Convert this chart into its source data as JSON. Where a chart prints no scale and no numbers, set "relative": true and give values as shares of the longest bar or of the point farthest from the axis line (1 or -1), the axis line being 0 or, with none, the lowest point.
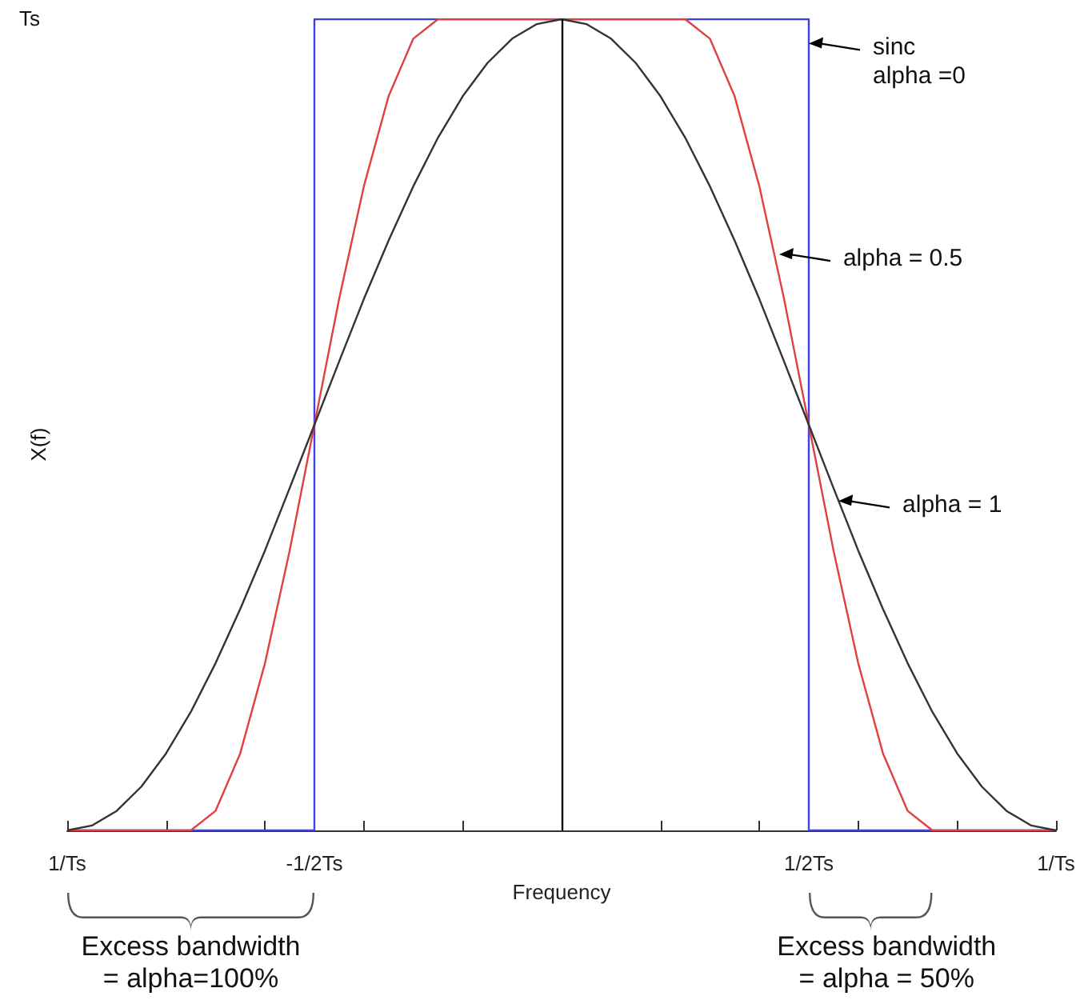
{
  "chart_data": {
    "type": "line",
    "relative": true,
    "xlabel": "Frequency",
    "ylabel": "X(f)",
    "x": [
      -1,
      -0.95,
      -0.9,
      -0.85,
      -0.8,
      -0.75,
      -0.7,
      -0.65,
      -0.6,
      -0.55,
      -0.5,
      -0.45,
      -0.4,
      -0.35,
      -0.3,
      -0.25,
      -0.2,
      -0.15,
      -0.1,
      -0.05,
      0,
      0.05,
      0.1,
      0.15,
      0.2,
      0.25,
      0.3,
      0.35,
      0.4,
      0.45,
      0.5,
      0.55,
      0.6,
      0.65,
      0.7,
      0.75,
      0.8,
      0.85,
      0.9,
      0.95,
      1
    ],
    "xlim": [
      -1,
      1
    ],
    "xticks": [
      {
        "value": -1,
        "label": "1/Ts"
      },
      {
        "value": -0.8,
        "label": null
      },
      {
        "value": -0.6,
        "label": null
      },
      {
        "value": -0.5,
        "label": "-1/2Ts"
      },
      {
        "value": -0.4,
        "label": null
      },
      {
        "value": -0.2,
        "label": null
      },
      {
        "value": 0,
        "label": null
      },
      {
        "value": 0.2,
        "label": null
      },
      {
        "value": 0.4,
        "label": null
      },
      {
        "value": 0.5,
        "label": "1/2Ts"
      },
      {
        "value": 0.6,
        "label": null
      },
      {
        "value": 0.8,
        "label": null
      },
      {
        "value": 1,
        "label": "1/Ts"
      }
    ],
    "series": [
      {
        "color": "#4040e0",
        "x": [
          -1,
          -0.5,
          -0.5,
          0.5,
          0.5,
          1
        ],
        "values": [
          0,
          0,
          1,
          1,
          0,
          0
        ]
      },
      {
        "color": "#e04040",
        "values": [
          0,
          0,
          0,
          0,
          0,
          0,
          0.024,
          0.095,
          0.206,
          0.345,
          0.5,
          0.655,
          0.794,
          0.905,
          0.976,
          1,
          1,
          1,
          1,
          1,
          1,
          1,
          1,
          1,
          1,
          1,
          0.976,
          0.905,
          0.794,
          0.655,
          0.5,
          0.345,
          0.206,
          0.095,
          0.024,
          0,
          0,
          0,
          0,
          0,
          0
        ]
      },
      {
        "color": "#333333",
        "values": [
          0,
          0.006,
          0.024,
          0.054,
          0.095,
          0.146,
          0.206,
          0.273,
          0.345,
          0.422,
          0.5,
          0.578,
          0.655,
          0.727,
          0.794,
          0.854,
          0.905,
          0.946,
          0.976,
          0.994,
          1,
          0.994,
          0.976,
          0.946,
          0.905,
          0.854,
          0.794,
          0.727,
          0.655,
          0.578,
          0.5,
          0.422,
          0.345,
          0.273,
          0.206,
          0.146,
          0.095,
          0.054,
          0.024,
          0.006,
          0
        ]
      }
    ],
    "ref_lines": [
      {
        "axis": "x",
        "value": 0,
        "color": "#000000"
      }
    ],
    "annotations": [
      "Ts",
      {
        "text": "sinc\nalpha =0",
        "x": 0.5,
        "y": 0.97
      },
      {
        "text": "alpha = 0.5",
        "x": 0.44,
        "y": 0.71
      },
      {
        "text": "alpha = 1",
        "x": 0.56,
        "y": 0.406
      },
      "Excess bandwidth\n= alpha=100%",
      "Excess bandwidth\n= alpha = 50%"
    ],
    "marker": "none",
    "line_style": "solid"
  }
}
